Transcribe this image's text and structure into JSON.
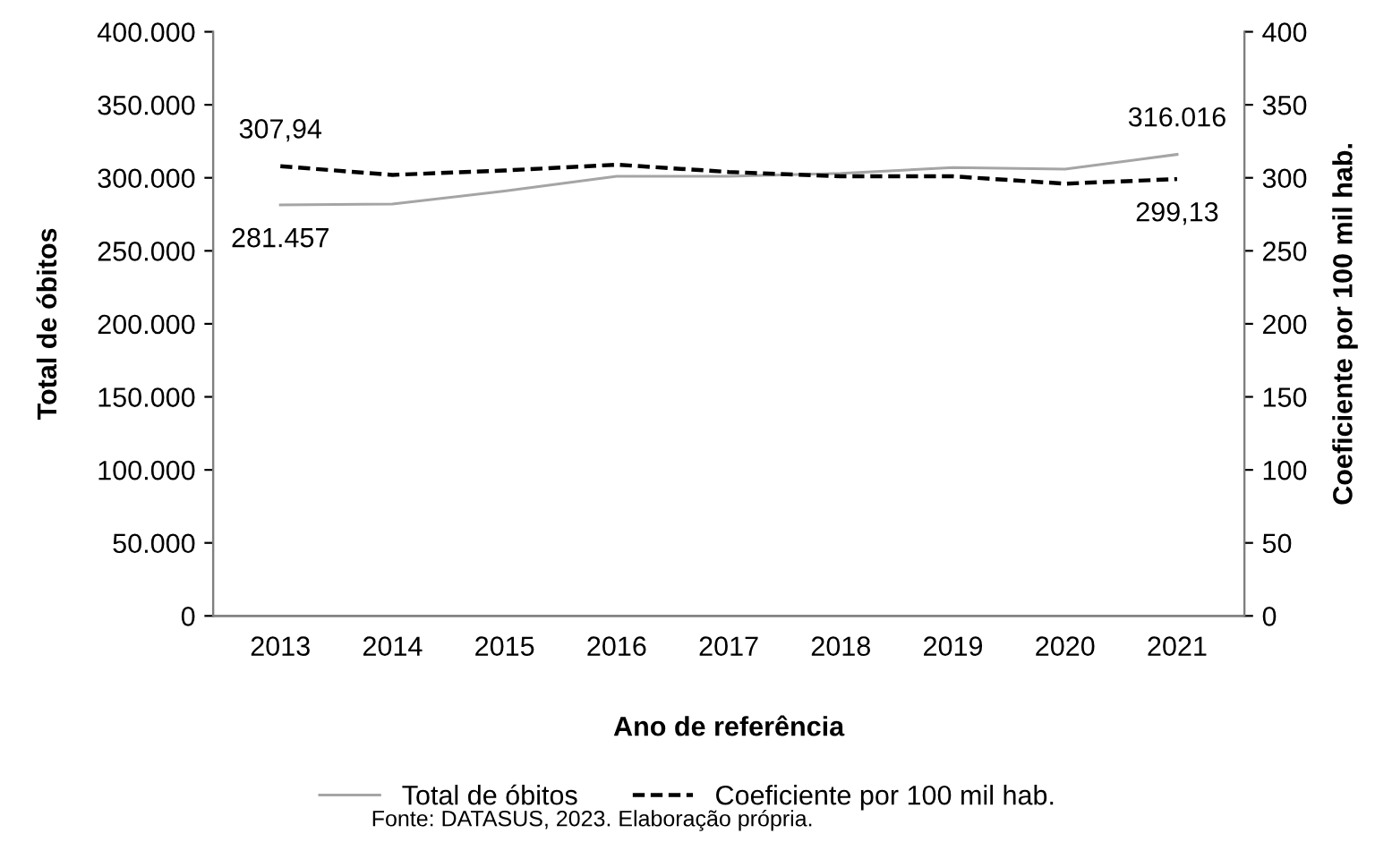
{
  "chart_data": {
    "type": "line",
    "categories": [
      "2013",
      "2014",
      "2015",
      "2016",
      "2017",
      "2018",
      "2019",
      "2020",
      "2021"
    ],
    "series": [
      {
        "name": "Total de óbitos",
        "color": "#a5a5a5",
        "line_style": "solid",
        "values": [
          281457,
          282000,
          291000,
          301000,
          301000,
          303000,
          307000,
          306000,
          316016
        ],
        "value_labels": [
          "281.457",
          null,
          null,
          null,
          null,
          null,
          null,
          null,
          "316.016"
        ]
      },
      {
        "name": "Coeficiente por 100 mil hab.",
        "color": "#000000",
        "line_style": "dashed",
        "axis": "y2",
        "values": [
          307.94,
          302,
          305,
          309,
          304,
          301,
          301,
          296,
          299.13
        ],
        "value_labels": [
          "307,94",
          null,
          null,
          null,
          null,
          null,
          null,
          null,
          "299,13"
        ]
      }
    ],
    "xlabel": "Ano de referência",
    "ylabel": "Total de óbitos",
    "y2label": "Coeficiente por 100 mil hab.",
    "ylim": [
      0,
      400000
    ],
    "yticks": [
      {
        "value": 0,
        "label": "0"
      },
      {
        "value": 50000,
        "label": "50.000"
      },
      {
        "value": 100000,
        "label": "100.000"
      },
      {
        "value": 150000,
        "label": "150.000"
      },
      {
        "value": 200000,
        "label": "200.000"
      },
      {
        "value": 250000,
        "label": "250.000"
      },
      {
        "value": 300000,
        "label": "300.000"
      },
      {
        "value": 350000,
        "label": "350.000"
      },
      {
        "value": 400000,
        "label": "400.000"
      }
    ],
    "y2lim": [
      0,
      400
    ],
    "y2ticks": [
      0,
      50,
      100,
      150,
      200,
      250,
      300,
      350,
      400
    ],
    "legend": "bottom",
    "grid": false,
    "annotations": [
      "Fonte: DATASUS, 2023. Elaboração própria."
    ]
  }
}
